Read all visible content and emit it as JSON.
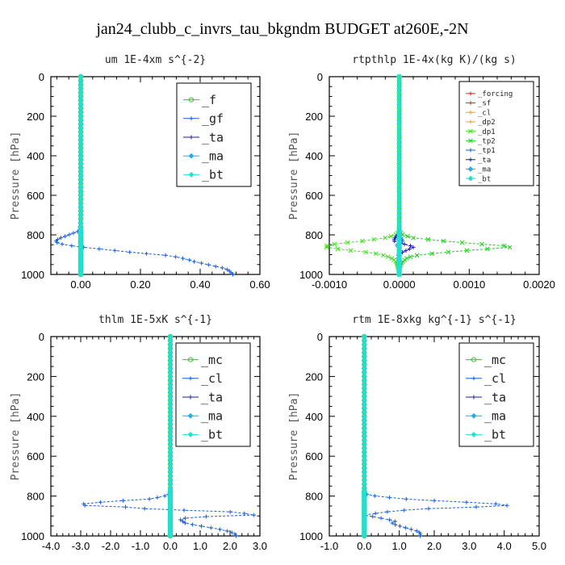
{
  "figure_title": "jan24_clubb_c_invrs_tau_bkgndm  BUDGET at260E,-2N",
  "colors": {
    "green": "#22cc22",
    "blue": "#1a5fd6",
    "navy": "#1a1aa6",
    "cyan": "#19b4e6",
    "aqua": "#22e0d0",
    "red": "#ff1a1a",
    "orange": "#ff9a1a",
    "lime": "#44dd22"
  },
  "chart_data": [
    {
      "id": "um",
      "type": "line",
      "title": "um  1E-4xm s^{-2}",
      "ylabel": "Pressure [hPa]",
      "ylim": [
        1000,
        0
      ],
      "xlim": [
        -0.1,
        0.6
      ],
      "xticks": [
        "0.00",
        "0.20",
        "0.40",
        "0.60"
      ],
      "xtick_values": [
        0,
        0.2,
        0.4,
        0.6
      ],
      "yticks": [
        "0",
        "200",
        "400",
        "600",
        "800",
        "1000"
      ],
      "ytick_values": [
        0,
        200,
        400,
        600,
        800,
        1000
      ],
      "legend": {
        "position": "top-right",
        "entries": [
          "_f",
          "_gf",
          "_ta",
          "_ma",
          "_bt"
        ]
      },
      "series": [
        {
          "name": "_f",
          "color": "green",
          "p": [
            0,
            1000
          ],
          "v": [
            0,
            0
          ]
        },
        {
          "name": "_gf",
          "color": "blue",
          "p": [
            0,
            150,
            170,
            190,
            210,
            230,
            260,
            300,
            350,
            400,
            500,
            600,
            700,
            780,
            800,
            820,
            835,
            845,
            855,
            865,
            875,
            885,
            895,
            905,
            915,
            925,
            935,
            945,
            955,
            965,
            975,
            985,
            995,
            1000
          ],
          "v": [
            0,
            0,
            -0.003,
            0.002,
            -0.003,
            0.003,
            -0.002,
            0.002,
            0,
            0,
            0,
            0,
            0,
            -0.005,
            -0.04,
            -0.075,
            -0.085,
            -0.07,
            -0.03,
            0.02,
            0.09,
            0.15,
            0.22,
            0.3,
            0.33,
            0.36,
            0.38,
            0.41,
            0.44,
            0.47,
            0.49,
            0.5,
            0.505,
            0.51
          ]
        },
        {
          "name": "_ta",
          "color": "navy",
          "p": [
            0,
            1000
          ],
          "v": [
            0,
            0
          ]
        },
        {
          "name": "_ma",
          "color": "cyan",
          "p": [
            0,
            1000
          ],
          "v": [
            0,
            0
          ]
        },
        {
          "name": "_bt",
          "color": "aqua",
          "p": [
            0,
            1000
          ],
          "v": [
            0,
            0
          ]
        }
      ]
    },
    {
      "id": "rtpthlp",
      "type": "line",
      "title": "rtpthlp  1E-4x(kg K)/(kg s)",
      "ylabel": "Pressure [hPa]",
      "ylim": [
        1000,
        0
      ],
      "xlim": [
        -0.001,
        0.002
      ],
      "xticks": [
        "-0.0010",
        "0.0000",
        "0.0010",
        "0.0020"
      ],
      "xtick_values": [
        -0.001,
        0,
        0.001,
        0.002
      ],
      "yticks": [
        "0",
        "200",
        "400",
        "600",
        "800",
        "1000"
      ],
      "ytick_values": [
        0,
        200,
        400,
        600,
        800,
        1000
      ],
      "legend": {
        "position": "top-right",
        "entries": [
          "_forcing",
          "_sf",
          "_cl",
          "_dp2",
          "_dp1",
          "_tp2",
          "_tp1",
          "_ta",
          "_ma",
          "_bt"
        ]
      },
      "series": [
        {
          "name": "_forcing",
          "color": "red",
          "p": [
            0,
            1000
          ],
          "v": [
            0,
            0
          ]
        },
        {
          "name": "_sf",
          "color": "red",
          "p": [
            0,
            1000
          ],
          "v": [
            0,
            0
          ]
        },
        {
          "name": "_cl",
          "color": "orange",
          "p": [
            0,
            1000
          ],
          "v": [
            0,
            0
          ]
        },
        {
          "name": "_dp2",
          "color": "orange",
          "p": [
            0,
            1000
          ],
          "v": [
            0,
            0
          ]
        },
        {
          "name": "_dp1",
          "color": "lime",
          "p": [
            0,
            780,
            800,
            815,
            830,
            845,
            860,
            875,
            890,
            905,
            920,
            935,
            950,
            965,
            980,
            1000
          ],
          "v": [
            0,
            0,
            -5e-05,
            -0.0002,
            -0.0005,
            -0.0009,
            -0.0011,
            -0.0008,
            -0.0004,
            -0.0002,
            -0.0001,
            -5e-05,
            -3e-05,
            -2e-05,
            -1e-05,
            0
          ]
        },
        {
          "name": "_tp2",
          "color": "green",
          "p": [
            0,
            780,
            800,
            815,
            830,
            845,
            860,
            875,
            890,
            905,
            920,
            935,
            950,
            965,
            980,
            1000
          ],
          "v": [
            0,
            0,
            5e-05,
            0.0002,
            0.0006,
            0.0011,
            0.0017,
            0.0011,
            0.0006,
            0.0002,
            0.0001,
            5e-05,
            2e-05,
            1e-05,
            0,
            0
          ]
        },
        {
          "name": "_tp1",
          "color": "blue",
          "p": [
            0,
            800,
            830,
            850,
            880,
            900,
            930,
            950,
            1000
          ],
          "v": [
            0,
            0,
            5e-05,
            -4e-05,
            2e-05,
            -2e-05,
            1e-05,
            0,
            0
          ]
        },
        {
          "name": "_ta",
          "color": "navy",
          "p": [
            0,
            790,
            810,
            830,
            850,
            860,
            875,
            890,
            905,
            920,
            940,
            1000
          ],
          "v": [
            0,
            0,
            -5e-05,
            -8e-05,
            0.0001,
            0.00022,
            0.00012,
            3e-05,
            0,
            -2e-05,
            0,
            0
          ]
        },
        {
          "name": "_ma",
          "color": "cyan",
          "p": [
            0,
            1000
          ],
          "v": [
            0,
            0
          ]
        },
        {
          "name": "_bt",
          "color": "aqua",
          "p": [
            0,
            1000
          ],
          "v": [
            0,
            0
          ]
        }
      ]
    },
    {
      "id": "thlm",
      "type": "line",
      "title": "thlm  1E-5xK s^{-1}",
      "ylabel": "Pressure [hPa]",
      "ylim": [
        1000,
        0
      ],
      "xlim": [
        -4,
        3
      ],
      "xticks": [
        "-4.0",
        "-3.0",
        "-2.0",
        "-1.0",
        "0.0",
        "1.0",
        "2.0",
        "3.0"
      ],
      "xtick_values": [
        -4,
        -3,
        -2,
        -1,
        0,
        1,
        2,
        3
      ],
      "yticks": [
        "0",
        "200",
        "400",
        "600",
        "800",
        "1000"
      ],
      "ytick_values": [
        0,
        200,
        400,
        600,
        800,
        1000
      ],
      "legend": {
        "position": "top-right",
        "entries": [
          "_mc",
          "_cl",
          "_ta",
          "_ma",
          "_bt"
        ]
      },
      "series": [
        {
          "name": "_mc",
          "color": "green",
          "p": [
            0,
            1000
          ],
          "v": [
            0,
            0
          ]
        },
        {
          "name": "_cl",
          "color": "blue",
          "p": [
            0,
            780,
            790,
            800,
            815,
            825,
            835,
            845,
            855,
            865,
            880,
            895,
            905,
            915,
            925,
            935,
            945,
            955,
            965,
            975,
            985,
            995,
            1000
          ],
          "v": [
            0,
            0,
            -0.05,
            -0.2,
            -0.7,
            -1.8,
            -2.7,
            -3.2,
            -1.5,
            -0.7,
            2.2,
            2.8,
            0.8,
            0.3,
            0.4,
            0.5,
            0.8,
            1.2,
            1.6,
            1.9,
            2.1,
            2.2,
            2.2
          ]
        },
        {
          "name": "_ta",
          "color": "navy",
          "p": [
            0,
            1000
          ],
          "v": [
            0,
            0
          ]
        },
        {
          "name": "_ma",
          "color": "cyan",
          "p": [
            0,
            1000
          ],
          "v": [
            0,
            0
          ]
        },
        {
          "name": "_bt",
          "color": "aqua",
          "p": [
            0,
            1000
          ],
          "v": [
            0,
            0
          ]
        }
      ]
    },
    {
      "id": "rtm",
      "type": "line",
      "title": "rtm  1E-8xkg kg^{-1} s^{-1}",
      "ylabel": "Pressure [hPa]",
      "ylim": [
        1000,
        0
      ],
      "xlim": [
        -1,
        5
      ],
      "xticks": [
        "-1.0",
        "0.0",
        "1.0",
        "2.0",
        "3.0",
        "4.0",
        "5.0"
      ],
      "xtick_values": [
        -1,
        0,
        1,
        2,
        3,
        4,
        5
      ],
      "yticks": [
        "0",
        "200",
        "400",
        "600",
        "800",
        "1000"
      ],
      "ytick_values": [
        0,
        200,
        400,
        600,
        800,
        1000
      ],
      "legend": {
        "position": "top-right",
        "entries": [
          "_mc",
          "_cl",
          "_ta",
          "_ma",
          "_bt"
        ]
      },
      "series": [
        {
          "name": "_mc",
          "color": "green",
          "p": [
            0,
            1000
          ],
          "v": [
            0,
            0
          ]
        },
        {
          "name": "_cl",
          "color": "blue",
          "p": [
            0,
            780,
            795,
            805,
            815,
            825,
            835,
            845,
            855,
            865,
            880,
            895,
            905,
            915,
            925,
            935,
            945,
            955,
            965,
            975,
            985,
            995,
            1000
          ],
          "v": [
            0,
            0,
            0.1,
            0.6,
            1.2,
            2.2,
            3.4,
            4.3,
            3.2,
            1.5,
            0.6,
            0,
            0.3,
            0.6,
            0.9,
            0.8,
            0.9,
            1.1,
            1.3,
            1.5,
            1.6,
            1.6,
            1.6
          ]
        },
        {
          "name": "_ta",
          "color": "navy",
          "p": [
            0,
            1000
          ],
          "v": [
            0,
            0
          ]
        },
        {
          "name": "_ma",
          "color": "cyan",
          "p": [
            0,
            1000
          ],
          "v": [
            0,
            0
          ]
        },
        {
          "name": "_bt",
          "color": "aqua",
          "p": [
            0,
            1000
          ],
          "v": [
            0,
            0
          ]
        }
      ]
    }
  ]
}
